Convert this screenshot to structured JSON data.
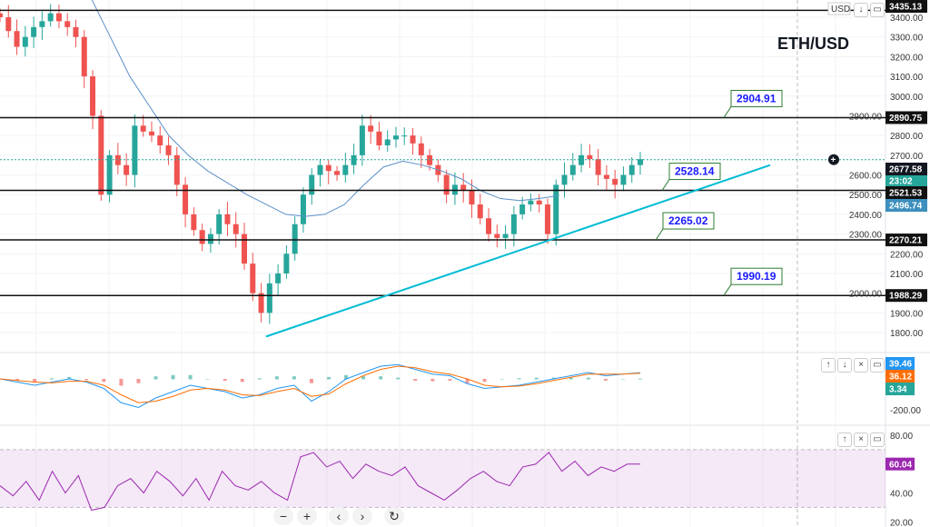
{
  "title": "ETH/USD",
  "currency": "USD",
  "chart_data": {
    "type": "candlestick",
    "price_axis": {
      "ticks": [
        3400,
        3300,
        3200,
        3100,
        3000,
        2900,
        2800,
        2700,
        2600,
        2500,
        2400,
        2300,
        2200,
        2100,
        2000,
        1900,
        1800
      ],
      "range": [
        1760,
        3450
      ]
    },
    "closes": [
      3400,
      3330,
      3250,
      3300,
      3350,
      3380,
      3420,
      3380,
      3350,
      3300,
      3100,
      2900,
      2500,
      2700,
      2650,
      2600,
      2850,
      2820,
      2800,
      2750,
      2700,
      2550,
      2400,
      2320,
      2250,
      2300,
      2400,
      2350,
      2300,
      2150,
      2000,
      1900,
      2050,
      2100,
      2200,
      2350,
      2500,
      2600,
      2650,
      2620,
      2600,
      2650,
      2700,
      2850,
      2820,
      2750,
      2780,
      2800,
      2800,
      2760,
      2700,
      2650,
      2600,
      2500,
      2550,
      2520,
      2450,
      2380,
      2300,
      2280,
      2300,
      2400,
      2450,
      2470,
      2450,
      2300,
      2550,
      2600,
      2650,
      2700,
      2680,
      2600,
      2580,
      2550,
      2600,
      2650,
      2680
    ],
    "moving_average": [
      3500,
      3300,
      3100,
      2950,
      2800,
      2700,
      2620,
      2560,
      2500,
      2450,
      2400,
      2390,
      2400,
      2450,
      2550,
      2640,
      2670,
      2650,
      2620,
      2580,
      2520,
      2480,
      2470,
      2480,
      2496
    ],
    "horizontal_levels": [
      {
        "price": 3435,
        "axis_label": "3435.13"
      },
      {
        "price": 2890.75,
        "axis_label": "2890.75"
      },
      {
        "price": 2521.53,
        "axis_label": "2521.53"
      },
      {
        "price": 2270.21,
        "axis_label": "2270.21"
      },
      {
        "price": 1988.29,
        "axis_label": "1988.29"
      }
    ],
    "level_callouts": [
      "2904.91",
      "2528.14",
      "2265.02",
      "1990.19"
    ],
    "trendline": {
      "from": {
        "price": 1780
      },
      "to": {
        "price": 2650
      },
      "color": "#00bcd4"
    },
    "last_price": {
      "value": "2677.58",
      "sub": "23:02"
    },
    "ma_value": "2496.74",
    "macd": {
      "axis_ticks": [
        "-200.00"
      ],
      "macd_value": "39.46",
      "signal_value": "36.12",
      "hist_value": "3.34",
      "macd_color": "#2196f3",
      "signal_color": "#ff6d00",
      "macd": [
        0,
        -20,
        -40,
        -20,
        0,
        -20,
        -60,
        -150,
        -180,
        -120,
        -80,
        -40,
        -60,
        -80,
        -120,
        -100,
        -60,
        -40,
        -140,
        -80,
        0,
        40,
        80,
        90,
        60,
        30,
        20,
        -30,
        -60,
        -50,
        -40,
        -20,
        0,
        20,
        40,
        20,
        30,
        39
      ],
      "signal": [
        0,
        -10,
        -20,
        -25,
        -15,
        -15,
        -40,
        -100,
        -150,
        -140,
        -110,
        -70,
        -60,
        -70,
        -100,
        -105,
        -80,
        -60,
        -110,
        -95,
        -30,
        20,
        60,
        80,
        70,
        45,
        30,
        0,
        -40,
        -50,
        -45,
        -30,
        -10,
        10,
        30,
        30,
        30,
        36
      ]
    },
    "rsi": {
      "axis_ticks": [
        "80.00",
        "40.00",
        "20.00"
      ],
      "value": "60.04",
      "color": "#9c27b0",
      "band": [
        70,
        30
      ],
      "values": [
        45,
        38,
        48,
        35,
        55,
        40,
        52,
        28,
        30,
        45,
        50,
        40,
        55,
        48,
        38,
        50,
        35,
        55,
        45,
        42,
        48,
        40,
        35,
        65,
        68,
        58,
        62,
        50,
        60,
        55,
        52,
        58,
        45,
        40,
        35,
        42,
        50,
        55,
        48,
        45,
        58,
        60,
        68,
        55,
        62,
        52,
        58,
        55,
        60,
        60
      ]
    }
  },
  "nav": {
    "zoom_out": "−",
    "zoom_in": "+",
    "prev": "‹",
    "next": "›",
    "reset": "↻"
  }
}
